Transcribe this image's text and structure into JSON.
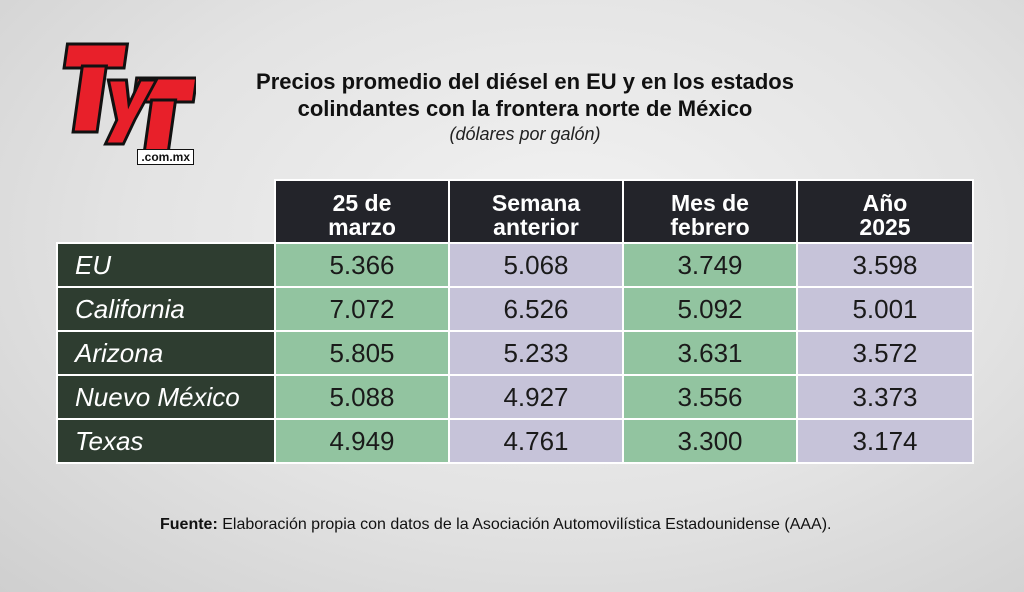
{
  "logo": {
    "text": "TyT",
    "domain": ".com.mx"
  },
  "chart_data": {
    "type": "table",
    "title": "Precios promedio del diésel en EU y en los estados colindantes con la frontera norte de México",
    "title_line1": "Precios promedio del diésel en EU y en los estados",
    "title_line2": "colindantes con la frontera norte de México",
    "subtitle": "(dólares por galón)",
    "columns": [
      {
        "line1": "25 de",
        "line2": "marzo"
      },
      {
        "line1": "Semana",
        "line2": "anterior"
      },
      {
        "line1": "Mes de",
        "line2": "febrero"
      },
      {
        "line1": "Año",
        "line2": "2025"
      }
    ],
    "rows": [
      {
        "label": "EU",
        "values": [
          "5.366",
          "5.068",
          "3.749",
          "3.598"
        ]
      },
      {
        "label": "California",
        "values": [
          "7.072",
          "6.526",
          "5.092",
          "5.001"
        ]
      },
      {
        "label": "Arizona",
        "values": [
          "5.805",
          "5.233",
          "3.631",
          "3.572"
        ]
      },
      {
        "label": "Nuevo México",
        "values": [
          "5.088",
          "4.927",
          "3.556",
          "3.373"
        ]
      },
      {
        "label": "Texas",
        "values": [
          "4.949",
          "4.761",
          "3.300",
          "3.174"
        ]
      }
    ]
  },
  "source": {
    "label": "Fuente:",
    "text": "Elaboración propia con datos de la Asociación Automovilística Estadounidense (AAA)."
  },
  "colors": {
    "logo_red": "#e8202a",
    "header_bg": "#23242a",
    "row_label_bg": "#2e3d30",
    "green_cell": "#92c4a0",
    "lavender_cell": "#c6c3d9"
  }
}
